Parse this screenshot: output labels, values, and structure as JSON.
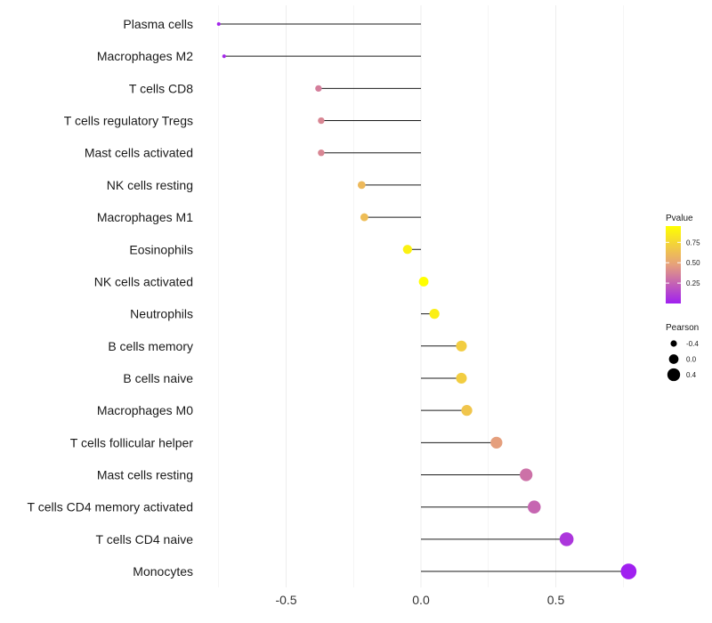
{
  "chart_data": {
    "type": "lollipop",
    "title": "",
    "xlabel": "",
    "ylabel": "",
    "xlim": [
      -0.76,
      0.8
    ],
    "x_ticks": [
      -0.5,
      0.0,
      0.5
    ],
    "x_tick_labels": [
      "-0.5",
      "0.0",
      "0.5"
    ],
    "grid": true,
    "categories": [
      "Plasma cells",
      "Macrophages M2",
      "T cells CD8",
      "T cells regulatory  Tregs",
      "Mast cells activated",
      "NK cells resting",
      "Macrophages M1",
      "Eosinophils",
      "NK cells activated",
      "Neutrophils",
      "B cells memory",
      "B cells naive",
      "Macrophages M0",
      "T cells follicular helper",
      "Mast cells resting",
      "T cells CD4 memory activated",
      "T cells CD4 naive",
      "Monocytes"
    ],
    "pearson": [
      -0.75,
      -0.73,
      -0.38,
      -0.37,
      -0.37,
      -0.22,
      -0.21,
      -0.05,
      0.01,
      0.05,
      0.15,
      0.15,
      0.17,
      0.28,
      0.39,
      0.42,
      0.54,
      0.77
    ],
    "pvalue": [
      0.02,
      0.03,
      0.35,
      0.38,
      0.38,
      0.6,
      0.62,
      0.88,
      0.97,
      0.87,
      0.7,
      0.7,
      0.66,
      0.47,
      0.3,
      0.26,
      0.08,
      0.0
    ],
    "legend_color": {
      "title": "Pvalue",
      "ticks": [
        0.25,
        0.5,
        0.75
      ],
      "tick_labels": [
        "0.25",
        "0.50",
        "0.75"
      ],
      "range": [
        0.0,
        0.95
      ],
      "low_color": "#a020f0",
      "mid_color": "#e6a07c",
      "high_color": "#ffff00",
      "position": "right"
    },
    "legend_size": {
      "title": "Pearson",
      "values": [
        -0.4,
        0.0,
        0.4
      ],
      "labels": [
        "-0.4",
        "0.0",
        "0.4"
      ],
      "position": "right"
    }
  }
}
